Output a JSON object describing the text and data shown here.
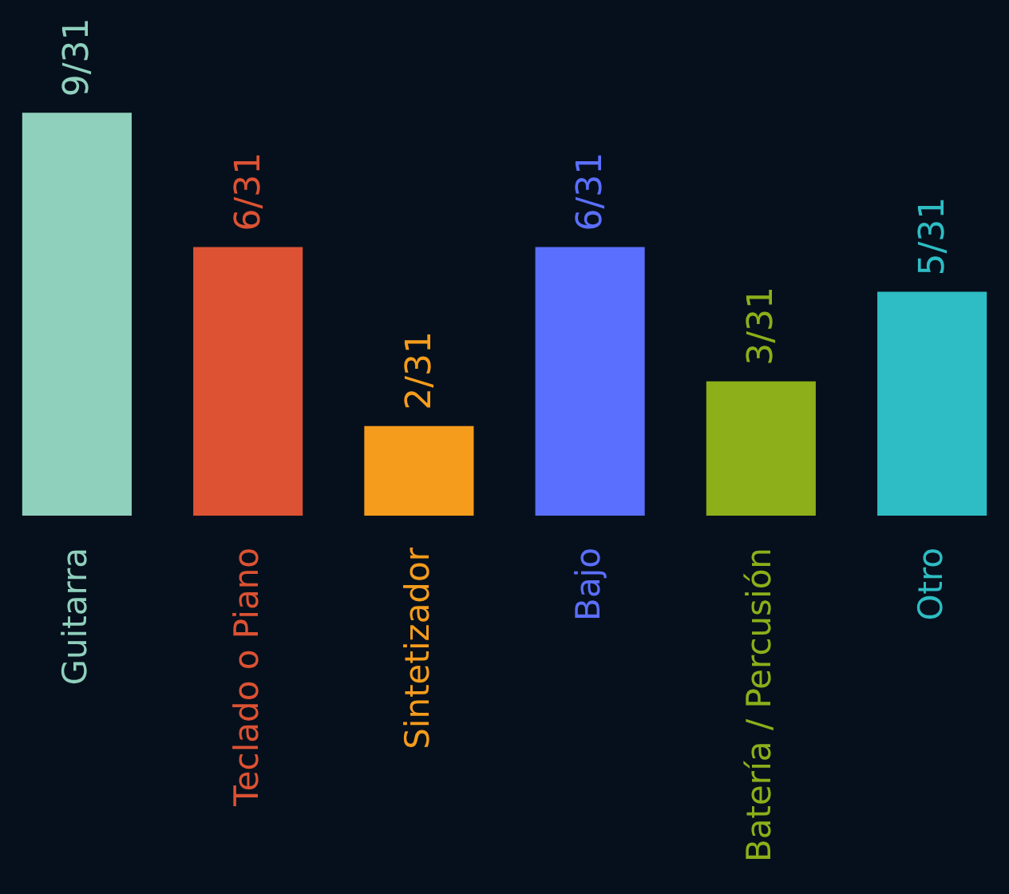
{
  "chart_data": {
    "type": "bar",
    "categories": [
      "Guitarra",
      "Teclado o Piano",
      "Sintetizador",
      "Bajo",
      "Batería / Percusión",
      "Otro"
    ],
    "values": [
      9,
      6,
      2,
      6,
      3,
      5
    ],
    "value_labels": [
      "9/31",
      "6/31",
      "2/31",
      "6/31",
      "3/31",
      "5/31"
    ],
    "colors": [
      "#8fd0bd",
      "#dc5233",
      "#f59c1c",
      "#5b6ffe",
      "#8caf1a",
      "#2ebdc4"
    ]
  }
}
